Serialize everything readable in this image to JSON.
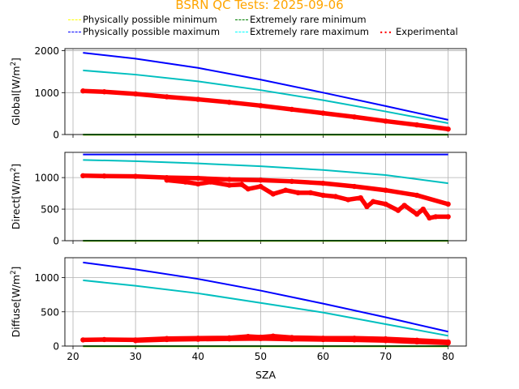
{
  "title": "BSRN QC Tests: 2025-09-06",
  "legend": [
    {
      "label": "Physically possible minimum",
      "color": "#ffff00",
      "style": "dashed"
    },
    {
      "label": "Extremely rare minimum",
      "color": "#008000",
      "style": "dashed"
    },
    {
      "label": "Physically possible maximum",
      "color": "#0000ff",
      "style": "dashed"
    },
    {
      "label": "Extremely rare maximum",
      "color": "#00ffff",
      "style": "dashed"
    },
    {
      "label": "Experimental",
      "color": "#ff0000",
      "style": "dotted"
    }
  ],
  "chart_data": [
    {
      "type": "line",
      "ylabel": "Global[W/m$^2$]",
      "ylabel_text": "Global[W/m",
      "xlim": [
        18.7,
        82.9
      ],
      "ylim": [
        0,
        2050
      ],
      "yticks": [
        0,
        1000,
        2000
      ],
      "grid": true,
      "series": [
        {
          "name": "Physically possible minimum",
          "color": "#ffff00",
          "x": [
            21.6,
            80
          ],
          "y": [
            -4,
            -4
          ]
        },
        {
          "name": "Extremely rare minimum",
          "color": "#008000",
          "x": [
            21.6,
            80
          ],
          "y": [
            -2,
            -2
          ]
        },
        {
          "name": "Physically possible maximum",
          "color": "#0000ff",
          "x": [
            21.6,
            30,
            40,
            50,
            60,
            70,
            80
          ],
          "y": [
            1950,
            1810,
            1590,
            1310,
            1000,
            680,
            350
          ]
        },
        {
          "name": "Extremely rare maximum",
          "color": "#00bfbf",
          "x": [
            21.6,
            30,
            40,
            50,
            60,
            70,
            80
          ],
          "y": [
            1530,
            1430,
            1270,
            1060,
            820,
            550,
            270
          ]
        },
        {
          "name": "Experimental",
          "color": "#ff0000",
          "marker": "dot",
          "x": [
            21.6,
            25,
            30,
            35,
            40,
            45,
            50,
            55,
            60,
            65,
            70,
            75,
            80
          ],
          "y": [
            1040,
            1020,
            970,
            900,
            840,
            770,
            690,
            600,
            510,
            420,
            320,
            230,
            130
          ]
        }
      ]
    },
    {
      "type": "line",
      "ylabel_text": "Direct[W/m",
      "xlim": [
        18.7,
        82.9
      ],
      "ylim": [
        0,
        1400
      ],
      "yticks": [
        0,
        500,
        1000
      ],
      "grid": true,
      "series": [
        {
          "name": "Physically possible minimum",
          "color": "#ffff00",
          "x": [
            21.6,
            80
          ],
          "y": [
            -3,
            -3
          ]
        },
        {
          "name": "Extremely rare minimum",
          "color": "#008000",
          "x": [
            21.6,
            80
          ],
          "y": [
            0,
            0
          ]
        },
        {
          "name": "Physically possible maximum",
          "color": "#0000ff",
          "x": [
            21.6,
            80
          ],
          "y": [
            1367,
            1367
          ]
        },
        {
          "name": "Extremely rare maximum",
          "color": "#00bfbf",
          "x": [
            21.6,
            30,
            40,
            50,
            60,
            70,
            80
          ],
          "y": [
            1280,
            1260,
            1225,
            1180,
            1120,
            1040,
            910
          ]
        },
        {
          "name": "Experimental",
          "color": "#ff0000",
          "marker": "dot",
          "x": [
            21.6,
            25,
            30,
            35,
            40,
            45,
            50,
            55,
            60,
            65,
            70,
            75,
            80
          ],
          "y": [
            1030,
            1025,
            1020,
            1000,
            990,
            970,
            960,
            940,
            910,
            860,
            800,
            720,
            580
          ]
        },
        {
          "name": "Experimental",
          "color": "#ff0000",
          "marker": "dot",
          "x": [
            35,
            38,
            40,
            42,
            45,
            47,
            48,
            50,
            52,
            54,
            56,
            58,
            60,
            62,
            64,
            66,
            67,
            68,
            70,
            72,
            73,
            75,
            76,
            77,
            78,
            80
          ],
          "y": [
            960,
            930,
            900,
            930,
            880,
            890,
            820,
            860,
            740,
            800,
            760,
            760,
            720,
            700,
            650,
            680,
            540,
            620,
            580,
            480,
            560,
            420,
            500,
            360,
            380,
            380
          ]
        }
      ]
    },
    {
      "type": "line",
      "ylabel_text": "Diffuse[W/m",
      "xlabel": "SZA",
      "xlim": [
        18.7,
        82.9
      ],
      "ylim": [
        0,
        1290
      ],
      "yticks": [
        0,
        500,
        1000
      ],
      "xticks": [
        20,
        30,
        40,
        50,
        60,
        70,
        80
      ],
      "grid": true,
      "series": [
        {
          "name": "Physically possible minimum",
          "color": "#ffff00",
          "x": [
            21.6,
            80
          ],
          "y": [
            -4,
            -4
          ]
        },
        {
          "name": "Extremely rare minimum",
          "color": "#008000",
          "x": [
            21.6,
            80
          ],
          "y": [
            -2,
            -2
          ]
        },
        {
          "name": "Physically possible maximum",
          "color": "#0000ff",
          "x": [
            21.6,
            30,
            40,
            50,
            60,
            70,
            80
          ],
          "y": [
            1220,
            1120,
            980,
            810,
            620,
            420,
            210
          ]
        },
        {
          "name": "Extremely rare maximum",
          "color": "#00bfbf",
          "x": [
            21.6,
            30,
            40,
            50,
            60,
            70,
            80
          ],
          "y": [
            960,
            880,
            770,
            630,
            490,
            320,
            150
          ]
        },
        {
          "name": "Experimental",
          "color": "#ff0000",
          "marker": "dot",
          "x": [
            21.6,
            25,
            30,
            35,
            40,
            45,
            48,
            50,
            52,
            55,
            60,
            65,
            70,
            75,
            80
          ],
          "y": [
            90,
            95,
            90,
            110,
            115,
            120,
            140,
            130,
            145,
            125,
            115,
            115,
            105,
            85,
            60
          ]
        },
        {
          "name": "Experimental",
          "color": "#ff0000",
          "marker": "dot",
          "x": [
            30,
            35,
            40,
            45,
            50,
            55,
            60,
            65,
            70,
            75,
            80
          ],
          "y": [
            80,
            95,
            100,
            105,
            110,
            100,
            95,
            90,
            80,
            60,
            45
          ]
        }
      ]
    }
  ]
}
